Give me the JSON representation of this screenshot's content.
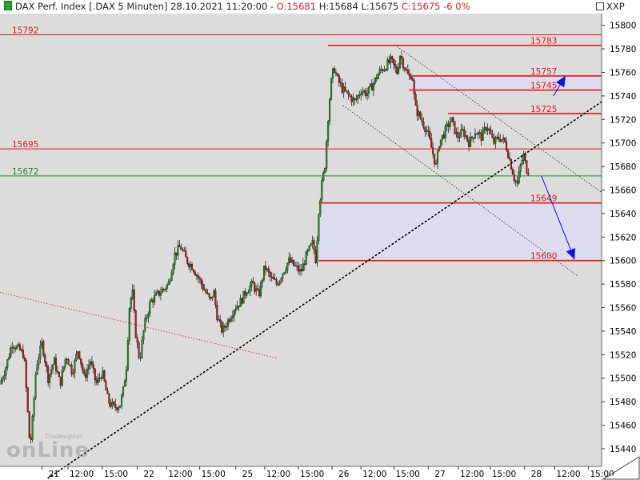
{
  "header": {
    "title": "DAX Perf. Index [.DAX  5 Minuten]",
    "datetime": "28.10.2021 11:20:00",
    "open": "O:15681",
    "high": "H:15684",
    "low": "L:15675",
    "close": "C:15675",
    "change": "-6",
    "change_pct": "0%"
  },
  "currency": "XXP",
  "logo": {
    "main": "onLine",
    "small": "Tradesignal"
  },
  "colors": {
    "up": "#1f8f1f",
    "down": "#b01c1c",
    "resistance": "#e01a1a",
    "support": "#2c8a2c",
    "zone": "#dcdcee",
    "arrow": "#1010e8",
    "bg": "#dcdcdc"
  },
  "chart_data": {
    "type": "candlestick",
    "instrument": "DAX Perf. Index",
    "interval": "5 Minuten",
    "ylim": [
      15425,
      15810
    ],
    "y_ticks": [
      15440,
      15460,
      15480,
      15500,
      15520,
      15540,
      15560,
      15580,
      15600,
      15620,
      15640,
      15660,
      15680,
      15700,
      15720,
      15740,
      15760,
      15780,
      15800
    ],
    "x_ticks": [
      {
        "label": "21",
        "pos": 0.07
      },
      {
        "label": "12:00",
        "pos": 0.113
      },
      {
        "label": "15:00",
        "pos": 0.17
      },
      {
        "label": "22",
        "pos": 0.228
      },
      {
        "label": "12:00",
        "pos": 0.277
      },
      {
        "label": "15:00",
        "pos": 0.332
      },
      {
        "label": "25",
        "pos": 0.392
      },
      {
        "label": "12:00",
        "pos": 0.44
      },
      {
        "label": "15:00",
        "pos": 0.496
      },
      {
        "label": "26",
        "pos": 0.552
      },
      {
        "label": "12:00",
        "pos": 0.6
      },
      {
        "label": "15:00",
        "pos": 0.655
      },
      {
        "label": "27",
        "pos": 0.712
      },
      {
        "label": "12:00",
        "pos": 0.762
      },
      {
        "label": "15:00",
        "pos": 0.815
      },
      {
        "label": "28",
        "pos": 0.872
      },
      {
        "label": "12:00",
        "pos": 0.922
      },
      {
        "label": "15:00",
        "pos": 0.978
      }
    ],
    "price_path": [
      [
        0,
        15495
      ],
      [
        0.01,
        15510
      ],
      [
        0.02,
        15530
      ],
      [
        0.03,
        15525
      ],
      [
        0.04,
        15520
      ],
      [
        0.045,
        15480
      ],
      [
        0.05,
        15440
      ],
      [
        0.055,
        15470
      ],
      [
        0.06,
        15510
      ],
      [
        0.07,
        15530
      ],
      [
        0.08,
        15500
      ],
      [
        0.09,
        15515
      ],
      [
        0.1,
        15495
      ],
      [
        0.11,
        15520
      ],
      [
        0.12,
        15505
      ],
      [
        0.13,
        15525
      ],
      [
        0.14,
        15500
      ],
      [
        0.15,
        15515
      ],
      [
        0.16,
        15495
      ],
      [
        0.17,
        15505
      ],
      [
        0.18,
        15480
      ],
      [
        0.19,
        15475
      ],
      [
        0.2,
        15478
      ],
      [
        0.205,
        15490
      ],
      [
        0.21,
        15510
      ],
      [
        0.215,
        15560
      ],
      [
        0.22,
        15575
      ],
      [
        0.225,
        15540
      ],
      [
        0.232,
        15515
      ],
      [
        0.24,
        15545
      ],
      [
        0.25,
        15565
      ],
      [
        0.26,
        15570
      ],
      [
        0.27,
        15575
      ],
      [
        0.28,
        15580
      ],
      [
        0.29,
        15605
      ],
      [
        0.3,
        15612
      ],
      [
        0.31,
        15600
      ],
      [
        0.32,
        15595
      ],
      [
        0.33,
        15585
      ],
      [
        0.34,
        15575
      ],
      [
        0.35,
        15565
      ],
      [
        0.355,
        15575
      ],
      [
        0.36,
        15555
      ],
      [
        0.365,
        15545
      ],
      [
        0.37,
        15540
      ],
      [
        0.38,
        15550
      ],
      [
        0.39,
        15560
      ],
      [
        0.4,
        15565
      ],
      [
        0.41,
        15575
      ],
      [
        0.42,
        15580
      ],
      [
        0.43,
        15570
      ],
      [
        0.44,
        15595
      ],
      [
        0.45,
        15585
      ],
      [
        0.46,
        15580
      ],
      [
        0.47,
        15590
      ],
      [
        0.48,
        15600
      ],
      [
        0.49,
        15595
      ],
      [
        0.5,
        15590
      ],
      [
        0.51,
        15605
      ],
      [
        0.52,
        15615
      ],
      [
        0.525,
        15600
      ],
      [
        0.53,
        15645
      ],
      [
        0.535,
        15665
      ],
      [
        0.54,
        15680
      ],
      [
        0.545,
        15720
      ],
      [
        0.55,
        15750
      ],
      [
        0.555,
        15765
      ],
      [
        0.56,
        15755
      ],
      [
        0.57,
        15745
      ],
      [
        0.58,
        15740
      ],
      [
        0.59,
        15735
      ],
      [
        0.6,
        15745
      ],
      [
        0.61,
        15742
      ],
      [
        0.62,
        15750
      ],
      [
        0.63,
        15760
      ],
      [
        0.64,
        15765
      ],
      [
        0.65,
        15770
      ],
      [
        0.66,
        15760
      ],
      [
        0.665,
        15775
      ],
      [
        0.67,
        15768
      ],
      [
        0.68,
        15755
      ],
      [
        0.685,
        15760
      ],
      [
        0.69,
        15730
      ],
      [
        0.7,
        15720
      ],
      [
        0.71,
        15710
      ],
      [
        0.72,
        15690
      ],
      [
        0.725,
        15680
      ],
      [
        0.73,
        15700
      ],
      [
        0.74,
        15710
      ],
      [
        0.75,
        15720
      ],
      [
        0.76,
        15705
      ],
      [
        0.77,
        15710
      ],
      [
        0.78,
        15700
      ],
      [
        0.79,
        15710
      ],
      [
        0.8,
        15705
      ],
      [
        0.81,
        15715
      ],
      [
        0.82,
        15700
      ],
      [
        0.83,
        15705
      ],
      [
        0.84,
        15700
      ],
      [
        0.845,
        15690
      ],
      [
        0.85,
        15680
      ],
      [
        0.855,
        15670
      ],
      [
        0.86,
        15665
      ],
      [
        0.865,
        15680
      ],
      [
        0.87,
        15690
      ],
      [
        0.875,
        15678
      ],
      [
        0.88,
        15675
      ]
    ],
    "horizontal_levels": [
      {
        "value": 15792,
        "label": "15792",
        "color": "resistance",
        "start": 0.0
      },
      {
        "value": 15783,
        "label": "15783",
        "color": "resistance",
        "start": 0.545
      },
      {
        "value": 15757,
        "label": "15757",
        "color": "resistance",
        "start": 0.68
      },
      {
        "value": 15745,
        "label": "15745",
        "color": "resistance",
        "start": 0.68
      },
      {
        "value": 15725,
        "label": "15725",
        "color": "resistance",
        "start": 0.745
      },
      {
        "value": 15695,
        "label": "15695",
        "color": "resistance",
        "start": 0.0
      },
      {
        "value": 15672,
        "label": "15672",
        "color": "support",
        "start": 0.0
      },
      {
        "value": 15649,
        "label": "15649",
        "color": "resistance",
        "start": 0.53
      },
      {
        "value": 15600,
        "label": "15600",
        "color": "resistance",
        "start": 0.53
      }
    ],
    "zones": [
      {
        "from": 15745,
        "to": 15757,
        "start": 0.68
      },
      {
        "from": 15600,
        "to": 15649,
        "start": 0.53
      }
    ],
    "trendlines": [
      {
        "style": "dotted",
        "from": [
          0.08,
          15415
        ],
        "to": [
          1.0,
          15735
        ]
      },
      {
        "style": "dashed-red",
        "from": [
          0.0,
          15573
        ],
        "to": [
          0.46,
          15517
        ]
      },
      {
        "style": "thin-dotted",
        "from": [
          0.66,
          15782
        ],
        "to": [
          1.0,
          15658
        ]
      },
      {
        "style": "thin-dotted",
        "from": [
          0.57,
          15732
        ],
        "to": [
          0.96,
          15587
        ]
      }
    ],
    "arrows": [
      {
        "from": [
          0.92,
          15740
        ],
        "to": [
          0.94,
          15757
        ]
      },
      {
        "from": [
          0.9,
          15672
        ],
        "to": [
          0.955,
          15601
        ]
      }
    ]
  }
}
